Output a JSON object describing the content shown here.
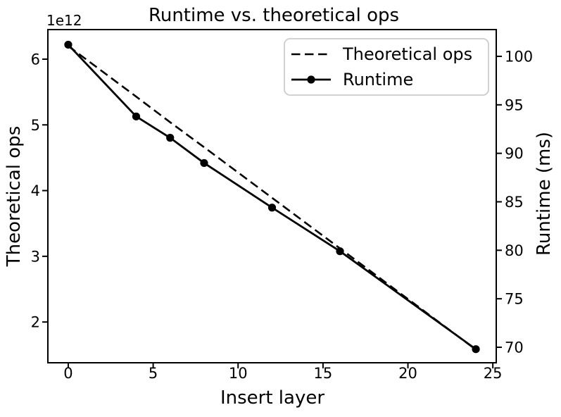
{
  "figure": {
    "background": "#ffffff",
    "foreground": "#000000"
  },
  "chart_data": {
    "type": "line",
    "title": "Runtime vs. theoretical ops",
    "xlabel": "Insert layer",
    "ylabel_left": "Theoretical ops",
    "ylabel_right": "Runtime (ms)",
    "offset_text": "1e12",
    "x": [
      0,
      4,
      6,
      8,
      12,
      16,
      24
    ],
    "series": [
      {
        "name": "Theoretical ops",
        "axis": "left",
        "style": "dashed",
        "marker": "none",
        "units": "1e12",
        "values": [
          6.2,
          5.43,
          5.04,
          4.66,
          3.89,
          3.12,
          1.58
        ]
      },
      {
        "name": "Runtime",
        "axis": "right",
        "style": "solid",
        "marker": "circle",
        "units": "ms",
        "values": [
          101.2,
          93.8,
          91.6,
          89.0,
          84.4,
          79.9,
          69.8
        ]
      }
    ],
    "xlim": [
      -1.2,
      25.2
    ],
    "xticks": [
      0,
      5,
      10,
      15,
      20,
      25
    ],
    "ylim_left": [
      1.38,
      6.45
    ],
    "yticks_left": [
      2,
      3,
      4,
      5,
      6
    ],
    "ylim_right": [
      68.4,
      102.76
    ],
    "yticks_right": [
      70,
      75,
      80,
      85,
      90,
      95,
      100
    ],
    "grid": false,
    "legend": {
      "position": "upper right",
      "entries": [
        "Theoretical ops",
        "Runtime"
      ]
    },
    "colors": {
      "line": "#000000",
      "background": "#ffffff",
      "legend_border": "#cccccc"
    }
  }
}
